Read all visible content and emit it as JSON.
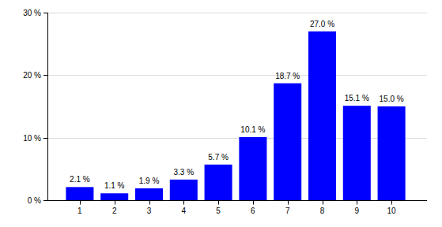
{
  "chart_data": {
    "type": "bar",
    "categories": [
      "1",
      "2",
      "3",
      "4",
      "5",
      "6",
      "7",
      "8",
      "9",
      "10"
    ],
    "values": [
      2.1,
      1.1,
      1.9,
      3.3,
      5.7,
      10.1,
      18.7,
      27.0,
      15.1,
      15.0
    ],
    "value_labels": [
      "2.1 %",
      "1.1 %",
      "1.9 %",
      "3.3 %",
      "5.7 %",
      "10.1 %",
      "18.7 %",
      "27.0 %",
      "15.1 %",
      "15.0 %"
    ],
    "color": "#0000ff",
    "ylim": [
      0,
      30
    ],
    "yticks": [
      {
        "value": 0,
        "label": "0 %"
      },
      {
        "value": 10,
        "label": "10 %"
      },
      {
        "value": 20,
        "label": "20 %"
      },
      {
        "value": 30,
        "label": "30 %"
      }
    ],
    "grid": true,
    "data_labels": true
  }
}
